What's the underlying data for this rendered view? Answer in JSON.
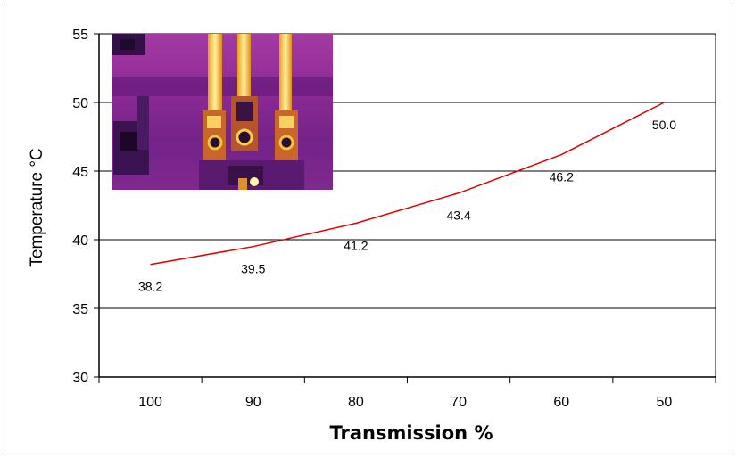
{
  "chart_data": {
    "type": "line",
    "categories": [
      "100",
      "90",
      "80",
      "70",
      "60",
      "50"
    ],
    "series": [
      {
        "values": [
          38.2,
          39.5,
          41.2,
          43.4,
          46.2,
          50.0
        ],
        "color": "#e00000"
      }
    ],
    "data_labels": [
      "38.2",
      "39.5",
      "41.2",
      "43.4",
      "46.2",
      "50.0"
    ],
    "xlabel": "Transmission %",
    "ylabel": "Temperature °C",
    "ylim": [
      30,
      55
    ],
    "yticks": [
      "30",
      "35",
      "40",
      "45",
      "50",
      "55"
    ],
    "grid": true,
    "legend": "none"
  },
  "inset_image": {
    "description_icon": "thermal-image",
    "palette": [
      "#2a0a3a",
      "#7a1a9a",
      "#b8329a",
      "#e8602a",
      "#f7c534",
      "#fff7a8"
    ]
  }
}
